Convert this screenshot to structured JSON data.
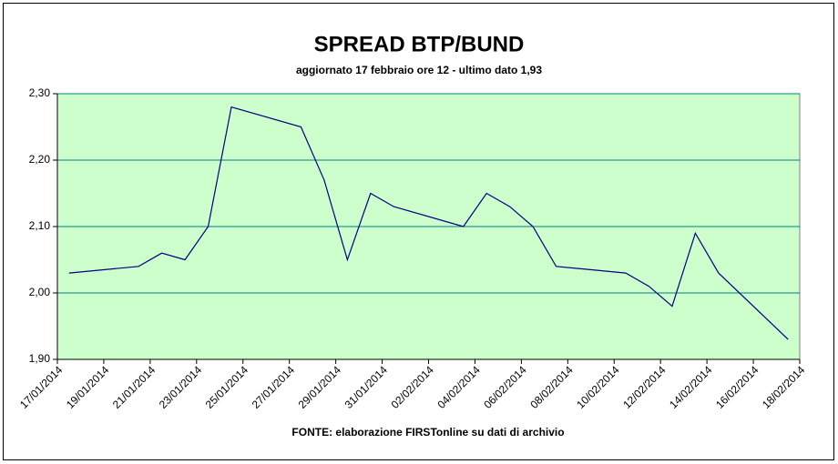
{
  "chart_data": {
    "type": "line",
    "title": "SPREAD BTP/BUND",
    "subtitle": "aggiornato 17 febbraio ore 12 - ultimo dato 1,93",
    "x_label": "FONTE: elaborazione FIRSTonline su dati di archivio",
    "x": [
      "17/01/2014",
      "20/01/2014",
      "21/01/2014",
      "22/01/2014",
      "23/01/2014",
      "24/01/2014",
      "27/01/2014",
      "28/01/2014",
      "29/01/2014",
      "30/01/2014",
      "31/01/2014",
      "03/02/2014",
      "04/02/2014",
      "05/02/2014",
      "06/02/2014",
      "07/02/2014",
      "10/02/2014",
      "11/02/2014",
      "12/02/2014",
      "13/02/2014",
      "14/02/2014",
      "17/02/2014"
    ],
    "series": [
      {
        "color": "#000080",
        "values": [
          2.03,
          2.04,
          2.06,
          2.05,
          2.1,
          2.28,
          2.25,
          2.17,
          2.05,
          2.15,
          2.13,
          2.1,
          2.15,
          2.13,
          2.1,
          2.04,
          2.03,
          2.01,
          1.98,
          2.09,
          2.03,
          1.93
        ]
      }
    ],
    "xlim": [
      "17/01/2014",
      "18/02/2014"
    ],
    "xticks": [
      "17/01/2014",
      "19/01/2014",
      "21/01/2014",
      "23/01/2014",
      "25/01/2014",
      "27/01/2014",
      "29/01/2014",
      "31/01/2014",
      "02/02/2014",
      "04/02/2014",
      "06/02/2014",
      "08/02/2014",
      "10/02/2014",
      "12/02/2014",
      "14/02/2014",
      "16/02/2014",
      "18/02/2014"
    ],
    "ylim": [
      1.9,
      2.3
    ],
    "yticks": [
      {
        "value": 1.9,
        "label": "1,90"
      },
      {
        "value": 2.0,
        "label": "2,00"
      },
      {
        "value": 2.1,
        "label": "2,10"
      },
      {
        "value": 2.2,
        "label": "2,20"
      },
      {
        "value": 2.3,
        "label": "2,30"
      }
    ],
    "grid": true,
    "plot_background": "#ccffcc"
  }
}
